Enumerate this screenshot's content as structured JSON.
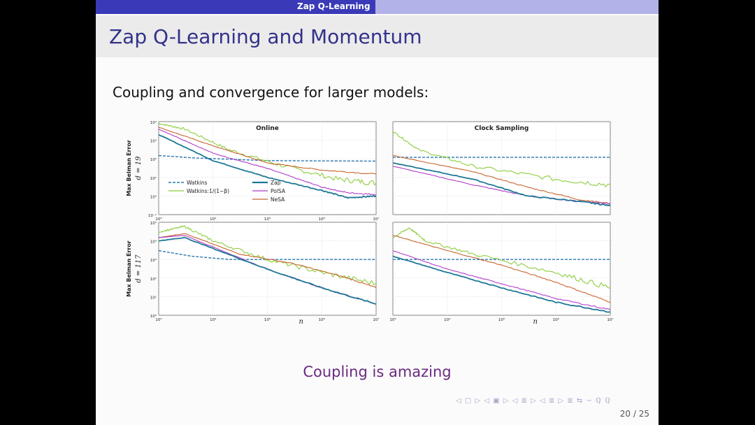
{
  "header": {
    "section": "Zap Q-Learning"
  },
  "slide": {
    "title": "Zap Q-Learning and Momentum",
    "subtitle": "Coupling and convergence for larger models:",
    "closing": "Coupling is amazing",
    "page": "20 / 25",
    "nav_symbols": "◁ ▢ ▷  ◁ ▣ ▷  ◁ ≣ ▷  ◁ ≣ ▷   ≣ ⇆   ∽ ℚ ℚ"
  },
  "chart_data": [
    {
      "type": "line",
      "title": "Online",
      "ylabel": "Max Belman Error",
      "row_label": "d = 19",
      "xscale": "log",
      "yscale": "log",
      "xlim": [
        1000,
        10000000
      ],
      "ylim": [
        0.1,
        10000
      ],
      "x_ticks": [
        "10³",
        "10⁴",
        "10⁵",
        "10⁶",
        "10⁷"
      ],
      "y_ticks": [
        "10⁴",
        "10³",
        "10²",
        "10¹",
        "10⁰",
        "10⁻¹"
      ],
      "legend": {
        "placement": "lower-left",
        "entries": [
          "Watkins",
          "Zap",
          "Watkins:1/(1−β)",
          "PolSA",
          "NeSA"
        ]
      },
      "series": [
        {
          "name": "Watkins",
          "style": "dashed",
          "color": "#2878b0",
          "x": [
            1000,
            5000,
            100000,
            10000000
          ],
          "y": [
            150,
            110,
            80,
            75
          ]
        },
        {
          "name": "Watkins:1/(1−β)",
          "color": "#8ccd3c",
          "noisy": true,
          "x": [
            1000,
            3000,
            20000,
            200000,
            2000000,
            10000000
          ],
          "y": [
            8000,
            4000,
            300,
            40,
            8,
            5
          ]
        },
        {
          "name": "PolSA",
          "color": "#b03cc8",
          "x": [
            1000,
            10000,
            100000,
            1000000,
            3000000,
            10000000
          ],
          "y": [
            4000,
            200,
            30,
            3,
            1.5,
            1.2
          ]
        },
        {
          "name": "NeSA",
          "color": "#c8642d",
          "x": [
            1000,
            10000,
            100000,
            1000000,
            10000000
          ],
          "y": [
            5000,
            500,
            60,
            25,
            15
          ]
        },
        {
          "name": "Zap",
          "color": "#1e7896",
          "x": [
            1000,
            10000,
            100000,
            1000000,
            3000000,
            10000000
          ],
          "y": [
            2000,
            80,
            10,
            2,
            0.8,
            1
          ]
        }
      ]
    },
    {
      "type": "line",
      "title": "Clock Sampling",
      "xscale": "log",
      "yscale": "log",
      "xlim": [
        1000,
        10000000
      ],
      "ylim": [
        0.1,
        10000
      ],
      "series": [
        {
          "name": "Watkins",
          "style": "dashed",
          "color": "#2878b0",
          "x": [
            1000,
            10000000
          ],
          "y": [
            120,
            120
          ]
        },
        {
          "name": "Watkins:1/(1−β)",
          "color": "#8ccd3c",
          "noisy": true,
          "x": [
            1000,
            3000,
            30000,
            1000000,
            10000000
          ],
          "y": [
            3000,
            300,
            40,
            8,
            4
          ]
        },
        {
          "name": "NeSA",
          "color": "#c8642d",
          "x": [
            1000,
            30000,
            300000,
            3000000,
            10000000
          ],
          "y": [
            150,
            20,
            3,
            0.6,
            0.4
          ]
        },
        {
          "name": "PolSA",
          "color": "#b03cc8",
          "x": [
            1000,
            30000,
            300000,
            3000000,
            10000000
          ],
          "y": [
            40,
            4,
            1,
            0.5,
            0.4
          ]
        },
        {
          "name": "Zap",
          "color": "#1e7896",
          "x": [
            1000,
            30000,
            300000,
            3000000,
            10000000
          ],
          "y": [
            60,
            8,
            1,
            0.5,
            0.3
          ]
        }
      ]
    },
    {
      "type": "line",
      "ylabel": "Max Belman Error",
      "row_label": "d = 117",
      "xlabel": "n",
      "xscale": "log",
      "yscale": "log",
      "xlim": [
        1000,
        10000000
      ],
      "ylim": [
        1,
        100000
      ],
      "x_ticks": [
        "10³",
        "10⁴",
        "10⁵",
        "10⁶",
        "10⁷"
      ],
      "y_ticks": [
        "10⁵",
        "10⁴",
        "10³",
        "10²",
        "10¹",
        "10⁰"
      ],
      "series": [
        {
          "name": "Watkins",
          "style": "dashed",
          "color": "#2878b0",
          "x": [
            1000,
            4000,
            20000,
            10000000
          ],
          "y": [
            3000,
            1500,
            1000,
            1000
          ]
        },
        {
          "name": "Watkins:1/(1−β)",
          "color": "#8ccd3c",
          "noisy": true,
          "x": [
            1000,
            3000,
            10000,
            100000,
            1000000,
            10000000
          ],
          "y": [
            30000,
            60000,
            10000,
            1000,
            200,
            50
          ]
        },
        {
          "name": "NeSA",
          "color": "#c8642d",
          "x": [
            1000,
            3000,
            30000,
            300000,
            3000000,
            10000000
          ],
          "y": [
            15000,
            25000,
            2000,
            600,
            100,
            30
          ]
        },
        {
          "name": "PolSA",
          "color": "#b03cc8",
          "x": [
            1000,
            3000,
            100000,
            1000000,
            10000000
          ],
          "y": [
            15000,
            20000,
            300,
            30,
            4
          ]
        },
        {
          "name": "Zap",
          "color": "#1e7896",
          "x": [
            1000,
            3000,
            100000,
            1000000,
            10000000
          ],
          "y": [
            10000,
            15000,
            300,
            30,
            4
          ]
        }
      ]
    },
    {
      "type": "line",
      "xlabel": "n",
      "xscale": "log",
      "yscale": "log",
      "xlim": [
        1000,
        10000000
      ],
      "ylim": [
        1,
        100000
      ],
      "x_ticks": [
        "10³",
        "10⁴",
        "10⁵",
        "10⁶",
        "10⁷"
      ],
      "series": [
        {
          "name": "Watkins",
          "style": "dashed",
          "color": "#2878b0",
          "x": [
            1000,
            10000000
          ],
          "y": [
            1000,
            1000
          ]
        },
        {
          "name": "Watkins:1/(1−β)",
          "color": "#8ccd3c",
          "noisy": true,
          "x": [
            1000,
            2000,
            4000,
            30000,
            1000000,
            10000000
          ],
          "y": [
            15000,
            50000,
            10000,
            2000,
            200,
            30
          ]
        },
        {
          "name": "NeSA",
          "color": "#c8642d",
          "x": [
            1000,
            10000,
            100000,
            1000000,
            10000000
          ],
          "y": [
            20000,
            3000,
            500,
            60,
            5
          ]
        },
        {
          "name": "PolSA",
          "color": "#b03cc8",
          "x": [
            1000,
            10000,
            100000,
            1000000,
            10000000
          ],
          "y": [
            3000,
            300,
            50,
            8,
            2
          ]
        },
        {
          "name": "Zap",
          "color": "#1e7896",
          "x": [
            1000,
            10000,
            100000,
            1000000,
            10000000
          ],
          "y": [
            1500,
            200,
            30,
            5,
            1.5
          ]
        }
      ]
    }
  ]
}
